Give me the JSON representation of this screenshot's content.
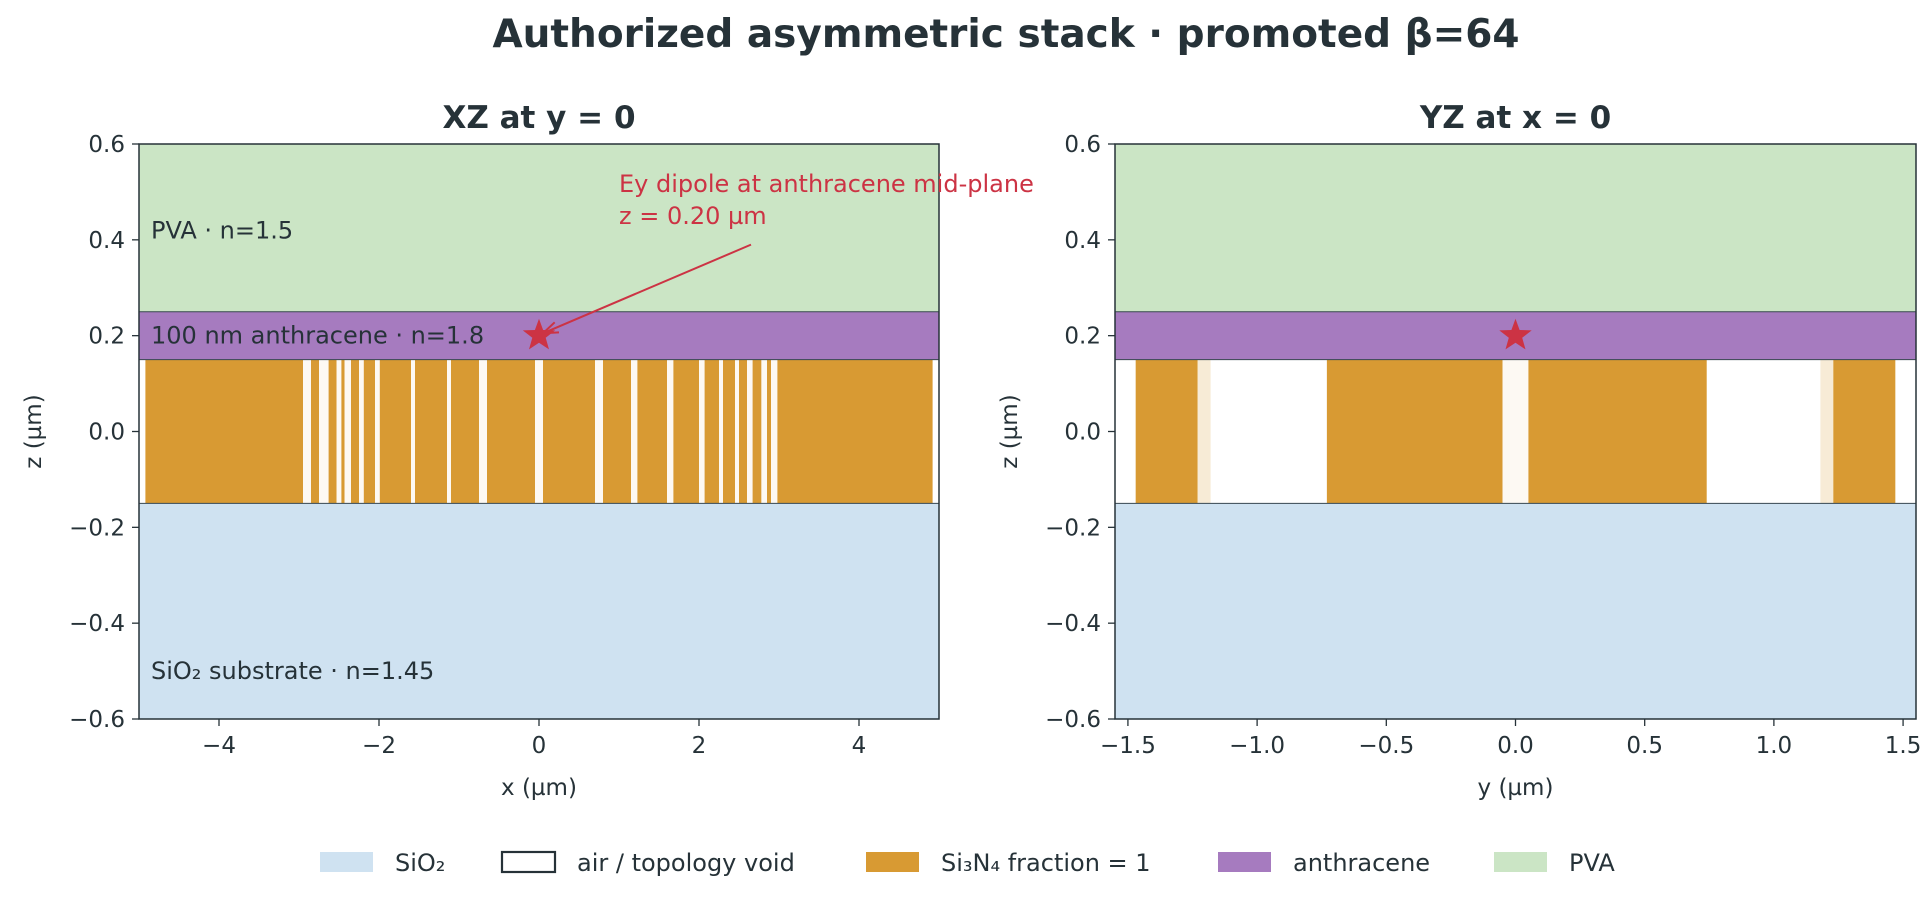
{
  "figure": {
    "suptitle": "Authorized asymmetric stack · promoted β=64"
  },
  "chart_data": [
    {
      "type": "area",
      "title": "XZ at y = 0",
      "xlabel": "x (µm)",
      "ylabel": "z (µm)",
      "xlim": [
        -5,
        5
      ],
      "ylim": [
        -0.6,
        0.6
      ],
      "xticks": [
        -4,
        -2,
        0,
        2,
        4
      ],
      "xtick_labels": [
        "−4",
        "−2",
        "0",
        "2",
        "4"
      ],
      "yticks": [
        0.6,
        0.4,
        0.2,
        0.0,
        -0.2,
        -0.4,
        -0.6
      ],
      "ytick_labels": [
        "0.6",
        "0.4",
        "0.2",
        "0.0",
        "−0.2",
        "−0.4",
        "−0.6"
      ],
      "layers": [
        {
          "name": "SiO₂",
          "z0": -0.6,
          "z1": -0.15,
          "color": "#cfe2f1"
        },
        {
          "name": "anthracene",
          "z0": 0.15,
          "z1": 0.25,
          "color": "#a67bbf"
        },
        {
          "name": "PVA",
          "z0": 0.25,
          "z1": 0.6,
          "color": "#cbe5c5"
        }
      ],
      "device_layer": {
        "z0": -0.15,
        "z1": 0.15,
        "background": "#ffffff",
        "segments": [
          {
            "x0": -4.92,
            "x1": -2.95,
            "fill": 1.0
          },
          {
            "x0": -2.95,
            "x1": -2.85,
            "fill": 0.06
          },
          {
            "x0": -2.85,
            "x1": -2.75,
            "fill": 1.0
          },
          {
            "x0": -2.75,
            "x1": -2.63,
            "fill": 0.06
          },
          {
            "x0": -2.63,
            "x1": -2.53,
            "fill": 1.0
          },
          {
            "x0": -2.53,
            "x1": -2.47,
            "fill": 0.06
          },
          {
            "x0": -2.47,
            "x1": -2.43,
            "fill": 1.0
          },
          {
            "x0": -2.43,
            "x1": -2.35,
            "fill": 0.06
          },
          {
            "x0": -2.35,
            "x1": -2.25,
            "fill": 1.0
          },
          {
            "x0": -2.25,
            "x1": -2.19,
            "fill": 0.06
          },
          {
            "x0": -2.19,
            "x1": -2.05,
            "fill": 1.0
          },
          {
            "x0": -2.05,
            "x1": -1.99,
            "fill": 0.06
          },
          {
            "x0": -1.99,
            "x1": -1.6,
            "fill": 1.0
          },
          {
            "x0": -1.6,
            "x1": -1.55,
            "fill": 0.06
          },
          {
            "x0": -1.55,
            "x1": -1.15,
            "fill": 1.0
          },
          {
            "x0": -1.15,
            "x1": -1.1,
            "fill": 0.06
          },
          {
            "x0": -1.1,
            "x1": -0.75,
            "fill": 1.0
          },
          {
            "x0": -0.75,
            "x1": -0.65,
            "fill": 0.06
          },
          {
            "x0": -0.65,
            "x1": -0.05,
            "fill": 1.0
          },
          {
            "x0": -0.05,
            "x1": 0.05,
            "fill": 0.06
          },
          {
            "x0": 0.05,
            "x1": 0.7,
            "fill": 1.0
          },
          {
            "x0": 0.7,
            "x1": 0.8,
            "fill": 0.06
          },
          {
            "x0": 0.8,
            "x1": 1.15,
            "fill": 1.0
          },
          {
            "x0": 1.15,
            "x1": 1.23,
            "fill": 0.06
          },
          {
            "x0": 1.23,
            "x1": 1.6,
            "fill": 1.0
          },
          {
            "x0": 1.6,
            "x1": 1.68,
            "fill": 0.06
          },
          {
            "x0": 1.68,
            "x1": 2.0,
            "fill": 1.0
          },
          {
            "x0": 2.0,
            "x1": 2.07,
            "fill": 0.06
          },
          {
            "x0": 2.07,
            "x1": 2.25,
            "fill": 1.0
          },
          {
            "x0": 2.25,
            "x1": 2.3,
            "fill": 0.06
          },
          {
            "x0": 2.3,
            "x1": 2.45,
            "fill": 1.0
          },
          {
            "x0": 2.45,
            "x1": 2.5,
            "fill": 0.06
          },
          {
            "x0": 2.5,
            "x1": 2.6,
            "fill": 1.0
          },
          {
            "x0": 2.6,
            "x1": 2.67,
            "fill": 0.06
          },
          {
            "x0": 2.67,
            "x1": 2.78,
            "fill": 1.0
          },
          {
            "x0": 2.78,
            "x1": 2.85,
            "fill": 0.06
          },
          {
            "x0": 2.85,
            "x1": 2.9,
            "fill": 1.0
          },
          {
            "x0": 2.9,
            "x1": 2.98,
            "fill": 0.06
          },
          {
            "x0": 2.98,
            "x1": 4.92,
            "fill": 1.0
          }
        ]
      },
      "layer_labels": [
        {
          "text": "PVA · n=1.5",
          "x": -4.85,
          "z": 0.42
        },
        {
          "text": "100 nm anthracene · n=1.8",
          "x": -4.85,
          "z": 0.2
        },
        {
          "text": "SiO₂ substrate · n=1.45",
          "x": -4.85,
          "z": -0.5
        }
      ],
      "dipole": {
        "x": 0.0,
        "z": 0.2,
        "color": "#cc3344"
      },
      "annotation": {
        "lines": [
          "Ey dipole at anthracene mid-plane",
          "z = 0.20 µm"
        ],
        "x": 1.0,
        "z": 0.5,
        "arrow_from": {
          "x": 2.65,
          "z": 0.39
        },
        "arrow_to": {
          "x": 0.05,
          "z": 0.205
        }
      }
    },
    {
      "type": "area",
      "title": "YZ at x = 0",
      "xlabel": "y (µm)",
      "ylabel": "z (µm)",
      "xlim": [
        -1.55,
        1.55
      ],
      "ylim": [
        -0.6,
        0.6
      ],
      "xticks": [
        -1.5,
        -1.0,
        -0.5,
        0.0,
        0.5,
        1.0,
        1.5
      ],
      "xtick_labels": [
        "−1.5",
        "−1.0",
        "−0.5",
        "0.0",
        "0.5",
        "1.0",
        "1.5"
      ],
      "yticks": [
        0.6,
        0.4,
        0.2,
        0.0,
        -0.2,
        -0.4,
        -0.6
      ],
      "ytick_labels": [
        "0.6",
        "0.4",
        "0.2",
        "0.0",
        "−0.2",
        "−0.4",
        "−0.6"
      ],
      "layers": [
        {
          "name": "SiO₂",
          "z0": -0.6,
          "z1": -0.15,
          "color": "#cfe2f1"
        },
        {
          "name": "anthracene",
          "z0": 0.15,
          "z1": 0.25,
          "color": "#a67bbf"
        },
        {
          "name": "PVA",
          "z0": 0.25,
          "z1": 0.6,
          "color": "#cbe5c5"
        }
      ],
      "device_layer": {
        "z0": -0.15,
        "z1": 0.15,
        "background": "#ffffff",
        "segments": [
          {
            "x0": -1.47,
            "x1": -1.23,
            "fill": 1.0
          },
          {
            "x0": -1.23,
            "x1": -1.18,
            "fill": 0.2
          },
          {
            "x0": -0.73,
            "x1": -0.05,
            "fill": 1.0
          },
          {
            "x0": -0.05,
            "x1": 0.05,
            "fill": 0.06
          },
          {
            "x0": 0.05,
            "x1": 0.74,
            "fill": 1.0
          },
          {
            "x0": 1.18,
            "x1": 1.23,
            "fill": 0.2
          },
          {
            "x0": 1.23,
            "x1": 1.47,
            "fill": 1.0
          }
        ]
      },
      "layer_labels": [],
      "dipole": {
        "x": 0.0,
        "z": 0.2,
        "color": "#cc3344"
      },
      "annotation": null
    }
  ],
  "legend": {
    "placement": "bottom-center",
    "items": [
      {
        "label": "SiO₂",
        "color": "#cfe2f1",
        "style": "fill"
      },
      {
        "label": "air / topology void",
        "color": "#ffffff",
        "style": "outline"
      },
      {
        "label": "Si₃N₄ fraction = 1",
        "color": "#d89a33",
        "style": "fill"
      },
      {
        "label": "anthracene",
        "color": "#a67bbf",
        "style": "fill"
      },
      {
        "label": "PVA",
        "color": "#cbe5c5",
        "style": "fill"
      }
    ]
  },
  "colors": {
    "text": "#263238",
    "si3n4": "#d89a33",
    "void_tint": "#fdf8ee",
    "dipole": "#cc3344"
  }
}
